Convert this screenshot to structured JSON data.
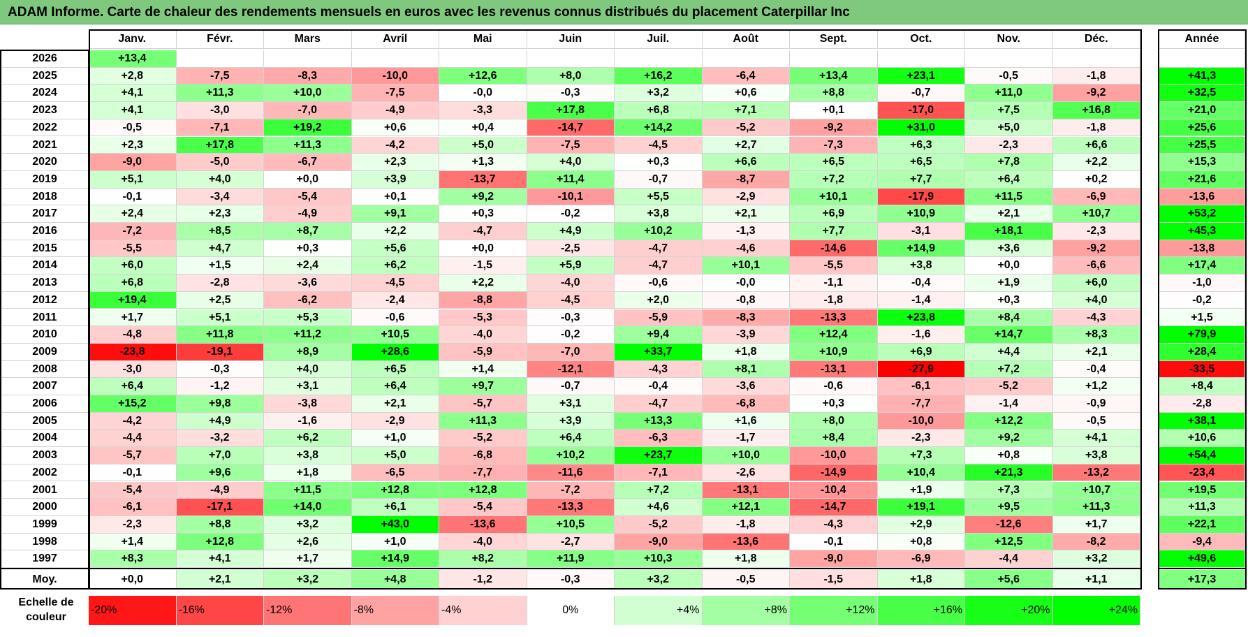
{
  "title": "ADAM Informe. Carte de chaleur des rendements mensuels en euros avec les revenus connus distribués du placement Caterpillar Inc",
  "colors": {
    "title_bg": "#7fc97f",
    "max_red": "#ff0000",
    "max_green": "#00ff00",
    "neutral": "#ffffff"
  },
  "chart_data": {
    "type": "heatmap",
    "title": "Carte de chaleur des rendements mensuels en euros avec les revenus connus distribués du placement Caterpillar Inc",
    "months": [
      "Janv.",
      "Févr.",
      "Mars",
      "Avril",
      "Mai",
      "Juin",
      "Juil.",
      "Août",
      "Sept.",
      "Oct.",
      "Nov.",
      "Déc."
    ],
    "year_header": "Année",
    "rows": [
      {
        "year": "2026",
        "months": [
          "+13,4",
          "",
          "",
          "",
          "",
          "",
          "",
          "",
          "",
          "",
          "",
          ""
        ],
        "annual": ""
      },
      {
        "year": "2025",
        "months": [
          "+2,8",
          "-7,5",
          "-8,3",
          "-10,0",
          "+12,6",
          "+8,0",
          "+16,2",
          "-6,4",
          "+13,4",
          "+23,1",
          "-0,5",
          "-1,8"
        ],
        "annual": "+41,3"
      },
      {
        "year": "2024",
        "months": [
          "+4,1",
          "+11,3",
          "+10,0",
          "-7,5",
          "-0,0",
          "-0,3",
          "+3,2",
          "+0,6",
          "+8,8",
          "-0,7",
          "+11,0",
          "-9,2"
        ],
        "annual": "+32,5"
      },
      {
        "year": "2023",
        "months": [
          "+4,1",
          "-3,0",
          "-7,0",
          "-4,9",
          "-3,3",
          "+17,8",
          "+6,8",
          "+7,1",
          "+0,1",
          "-17,0",
          "+7,5",
          "+16,8"
        ],
        "annual": "+21,0"
      },
      {
        "year": "2022",
        "months": [
          "-0,5",
          "-7,1",
          "+19,2",
          "+0,6",
          "+0,4",
          "-14,7",
          "+14,2",
          "-5,2",
          "-9,2",
          "+31,0",
          "+5,0",
          "-1,8"
        ],
        "annual": "+25,6"
      },
      {
        "year": "2021",
        "months": [
          "+2,3",
          "+17,8",
          "+11,3",
          "-4,2",
          "+5,0",
          "-7,5",
          "-4,5",
          "+2,7",
          "-7,3",
          "+6,3",
          "-2,3",
          "+6,6"
        ],
        "annual": "+25,5"
      },
      {
        "year": "2020",
        "months": [
          "-9,0",
          "-5,0",
          "-6,7",
          "+2,3",
          "+1,3",
          "+4,0",
          "+0,3",
          "+6,6",
          "+6,5",
          "+6,5",
          "+7,8",
          "+2,2"
        ],
        "annual": "+15,3"
      },
      {
        "year": "2019",
        "months": [
          "+5,1",
          "+4,0",
          "+0,0",
          "+3,9",
          "-13,7",
          "+11,4",
          "-0,7",
          "-8,7",
          "+7,2",
          "+7,7",
          "+6,4",
          "+0,2"
        ],
        "annual": "+21,6"
      },
      {
        "year": "2018",
        "months": [
          "-0,1",
          "-3,4",
          "-5,4",
          "+0,1",
          "+9,2",
          "-10,1",
          "+5,5",
          "-2,9",
          "+10,1",
          "-17,9",
          "+11,5",
          "-6,9"
        ],
        "annual": "-13,6"
      },
      {
        "year": "2017",
        "months": [
          "+2,4",
          "+2,3",
          "-4,9",
          "+9,1",
          "+0,3",
          "-0,2",
          "+3,8",
          "+2,1",
          "+6,9",
          "+10,9",
          "+2,1",
          "+10,7"
        ],
        "annual": "+53,2"
      },
      {
        "year": "2016",
        "months": [
          "-7,2",
          "+8,5",
          "+8,7",
          "+2,2",
          "-4,7",
          "+4,9",
          "+10,2",
          "-1,3",
          "+7,7",
          "-3,1",
          "+18,1",
          "-2,3"
        ],
        "annual": "+45,3"
      },
      {
        "year": "2015",
        "months": [
          "-5,5",
          "+4,7",
          "+0,3",
          "+5,6",
          "+0,0",
          "-2,5",
          "-4,7",
          "-4,6",
          "-14,6",
          "+14,9",
          "+3,6",
          "-9,2"
        ],
        "annual": "-13,8"
      },
      {
        "year": "2014",
        "months": [
          "+6,0",
          "+1,5",
          "+2,4",
          "+6,2",
          "-1,5",
          "+5,9",
          "-4,7",
          "+10,1",
          "-5,5",
          "+3,8",
          "+0,0",
          "-6,6"
        ],
        "annual": "+17,4"
      },
      {
        "year": "2013",
        "months": [
          "+6,8",
          "-2,8",
          "-3,6",
          "-4,5",
          "+2,2",
          "-4,0",
          "-0,6",
          "-0,0",
          "-1,1",
          "-0,4",
          "+1,9",
          "+6,0"
        ],
        "annual": "-1,0"
      },
      {
        "year": "2012",
        "months": [
          "+19,4",
          "+2,5",
          "-6,2",
          "-2,4",
          "-8,8",
          "-4,5",
          "+2,0",
          "-0,8",
          "-1,8",
          "-1,4",
          "+0,3",
          "+4,0"
        ],
        "annual": "-0,2"
      },
      {
        "year": "2011",
        "months": [
          "+1,7",
          "+5,1",
          "+5,3",
          "-0,6",
          "-5,3",
          "-0,3",
          "-5,9",
          "-8,3",
          "-13,3",
          "+23,8",
          "+8,4",
          "-4,3"
        ],
        "annual": "+1,5"
      },
      {
        "year": "2010",
        "months": [
          "-4,8",
          "+11,8",
          "+11,2",
          "+10,5",
          "-4,0",
          "-0,2",
          "+9,4",
          "-3,9",
          "+12,4",
          "-1,6",
          "+14,7",
          "+8,3"
        ],
        "annual": "+79,9"
      },
      {
        "year": "2009",
        "months": [
          "-23,8",
          "-19,1",
          "+8,9",
          "+28,6",
          "-5,9",
          "-7,0",
          "+33,7",
          "+1,8",
          "+10,9",
          "+6,9",
          "+4,4",
          "+2,1"
        ],
        "annual": "+28,4"
      },
      {
        "year": "2008",
        "months": [
          "-3,0",
          "-0,3",
          "+4,0",
          "+6,5",
          "+1,4",
          "-12,1",
          "-4,3",
          "+8,1",
          "-13,1",
          "-27,9",
          "+7,2",
          "-0,4"
        ],
        "annual": "-33,5"
      },
      {
        "year": "2007",
        "months": [
          "+6,4",
          "-1,2",
          "+3,1",
          "+6,4",
          "+9,7",
          "-0,7",
          "-0,4",
          "-3,6",
          "-0,6",
          "-6,1",
          "-5,2",
          "+1,2"
        ],
        "annual": "+8,4"
      },
      {
        "year": "2006",
        "months": [
          "+15,2",
          "+9,8",
          "-3,8",
          "+2,1",
          "-5,7",
          "+3,1",
          "-4,7",
          "-6,8",
          "+0,3",
          "-7,7",
          "-1,4",
          "-0,9"
        ],
        "annual": "-2,8"
      },
      {
        "year": "2005",
        "months": [
          "-4,2",
          "+4,9",
          "-1,6",
          "-2,9",
          "+11,3",
          "+3,9",
          "+13,3",
          "+1,6",
          "+8,0",
          "-10,0",
          "+12,2",
          "-0,5"
        ],
        "annual": "+38,1"
      },
      {
        "year": "2004",
        "months": [
          "-4,4",
          "-3,2",
          "+6,2",
          "+1,0",
          "-5,2",
          "+6,4",
          "-6,3",
          "-1,7",
          "+8,4",
          "-2,3",
          "+9,2",
          "+4,1"
        ],
        "annual": "+10,6"
      },
      {
        "year": "2003",
        "months": [
          "-5,7",
          "+7,0",
          "+3,8",
          "+5,0",
          "-6,8",
          "+10,2",
          "+23,7",
          "+10,0",
          "-10,0",
          "+7,3",
          "+0,8",
          "+3,8"
        ],
        "annual": "+54,4"
      },
      {
        "year": "2002",
        "months": [
          "-0,1",
          "+9,6",
          "+1,8",
          "-6,5",
          "-7,7",
          "-11,6",
          "-7,1",
          "-2,6",
          "-14,9",
          "+10,4",
          "+21,3",
          "-13,2"
        ],
        "annual": "-23,4"
      },
      {
        "year": "2001",
        "months": [
          "-5,4",
          "-4,9",
          "+11,5",
          "+12,8",
          "+12,8",
          "-7,2",
          "+7,2",
          "-13,1",
          "-10,4",
          "+1,9",
          "+7,3",
          "+10,7"
        ],
        "annual": "+19,5"
      },
      {
        "year": "2000",
        "months": [
          "-6,1",
          "-17,1",
          "+14,0",
          "+6,1",
          "-5,4",
          "-13,3",
          "+4,6",
          "+12,1",
          "-14,7",
          "+19,1",
          "+9,5",
          "+11,3"
        ],
        "annual": "+11,3"
      },
      {
        "year": "1999",
        "months": [
          "-2,3",
          "+8,8",
          "+3,2",
          "+43,0",
          "-13,6",
          "+10,5",
          "-5,2",
          "-1,8",
          "-4,3",
          "+2,9",
          "-12,6",
          "+1,7"
        ],
        "annual": "+22,1"
      },
      {
        "year": "1998",
        "months": [
          "+1,4",
          "+12,8",
          "+2,6",
          "+1,0",
          "-4,0",
          "-2,7",
          "-9,0",
          "-13,6",
          "-0,1",
          "+0,8",
          "+12,5",
          "-8,2"
        ],
        "annual": "-9,4"
      },
      {
        "year": "1997",
        "months": [
          "+8,3",
          "+4,1",
          "+1,7",
          "+14,9",
          "+8,2",
          "+11,9",
          "+10,3",
          "+1,8",
          "-9,0",
          "-6,9",
          "-4,4",
          "+3,2"
        ],
        "annual": "+49,6"
      }
    ],
    "average": {
      "label": "Moy.",
      "months": [
        "+0,0",
        "+2,1",
        "+3,2",
        "+4,8",
        "-1,2",
        "-0,3",
        "+3,2",
        "-0,5",
        "-1,5",
        "+1,8",
        "+5,6",
        "+1,1"
      ],
      "annual": "+17,3"
    },
    "scale": {
      "label": "Echelle de couleur",
      "steps": [
        "-20%",
        "-16%",
        "-12%",
        "-8%",
        "-4%",
        "0%",
        "+4%",
        "+8%",
        "+12%",
        "+16%",
        "+20%",
        "+24%"
      ],
      "values": [
        -20,
        -16,
        -12,
        -8,
        -4,
        0,
        4,
        8,
        12,
        16,
        20,
        24
      ]
    }
  }
}
